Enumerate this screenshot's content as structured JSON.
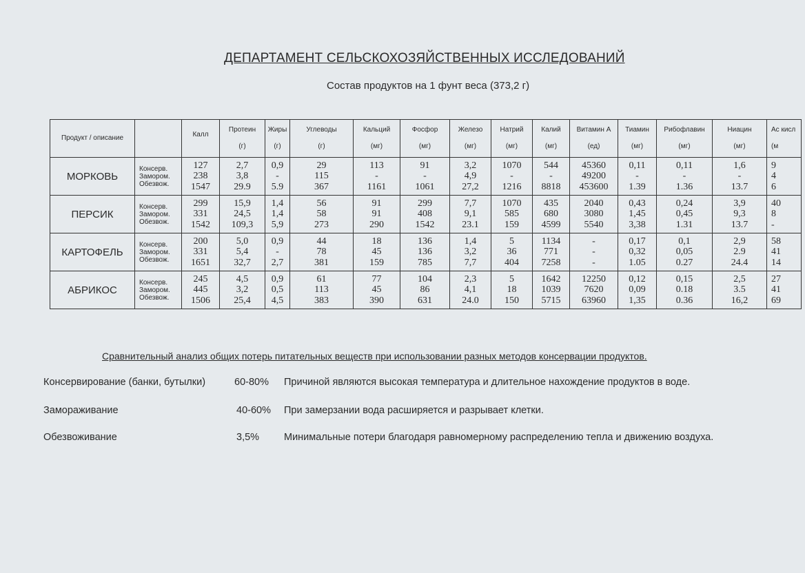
{
  "title": "ДЕПАРТАМЕНТ СЕЛЬСКОХОЗЯЙСТВЕННЫХ ИССЛЕДОВАНИЙ",
  "subtitle": "Состав продуктов на 1 фунт веса (373,2 г)",
  "table": {
    "product_header": "Продукт / описание",
    "columns": [
      {
        "name": "Калл",
        "unit": ""
      },
      {
        "name": "Протеин",
        "unit": "(г)"
      },
      {
        "name": "Жиры",
        "unit": "(г)"
      },
      {
        "name": "Углеводы",
        "unit": "(г)"
      },
      {
        "name": "Кальций",
        "unit": "(мг)"
      },
      {
        "name": "Фосфор",
        "unit": "(мг)"
      },
      {
        "name": "Железо",
        "unit": "(мг)"
      },
      {
        "name": "Натрий",
        "unit": "(мг)"
      },
      {
        "name": "Калий",
        "unit": "(мг)"
      },
      {
        "name": "Витамин A",
        "unit": "(ед)"
      },
      {
        "name": "Тиамин",
        "unit": "(мг)"
      },
      {
        "name": "Рибофлавин",
        "unit": "(мг)"
      },
      {
        "name": "Ниацин",
        "unit": "(мг)"
      },
      {
        "name": "Ас кисл",
        "unit": "(м"
      }
    ],
    "methods": [
      "Консерв.",
      "Замором.",
      "Обезвож."
    ],
    "rows": [
      {
        "product": "МОРКОВЬ",
        "values": [
          [
            "127",
            "238",
            "1547"
          ],
          [
            "2,7",
            "3,8",
            "29.9"
          ],
          [
            "0,9",
            "-",
            "5.9"
          ],
          [
            "29",
            "115",
            "367"
          ],
          [
            "113",
            "-",
            "1161"
          ],
          [
            "91",
            "-",
            "1061"
          ],
          [
            "3,2",
            "4,9",
            "27,2"
          ],
          [
            "1070",
            "-",
            "1216"
          ],
          [
            "544",
            "-",
            "8818"
          ],
          [
            "45360",
            "49200",
            "453600"
          ],
          [
            "0,11",
            "-",
            "1.39"
          ],
          [
            "0,11",
            "-",
            "1.36"
          ],
          [
            "1,6",
            "-",
            "13.7"
          ],
          [
            "9",
            "4",
            "6"
          ]
        ]
      },
      {
        "product": "ПЕРСИК",
        "values": [
          [
            "299",
            "331",
            "1542"
          ],
          [
            "15,9",
            "24,5",
            "109,3"
          ],
          [
            "1,4",
            "1,4",
            "5,9"
          ],
          [
            "56",
            "58",
            "273"
          ],
          [
            "91",
            "91",
            "290"
          ],
          [
            "299",
            "408",
            "1542"
          ],
          [
            "7,7",
            "9,1",
            "23.1"
          ],
          [
            "1070",
            "585",
            "159"
          ],
          [
            "435",
            "680",
            "4599"
          ],
          [
            "2040",
            "3080",
            "5540"
          ],
          [
            "0,43",
            "1,45",
            "3,38"
          ],
          [
            "0,24",
            "0,45",
            "1.31"
          ],
          [
            "3,9",
            "9,3",
            "13.7"
          ],
          [
            "40",
            "8",
            "-"
          ]
        ]
      },
      {
        "product": "КАРТОФЕЛЬ",
        "values": [
          [
            "200",
            "331",
            "1651"
          ],
          [
            "5,0",
            "5,4",
            "32,7"
          ],
          [
            "0,9",
            "-",
            "2,7"
          ],
          [
            "44",
            "78",
            "381"
          ],
          [
            "18",
            "45",
            "159"
          ],
          [
            "136",
            "136",
            "785"
          ],
          [
            "1,4",
            "3,2",
            "7,7"
          ],
          [
            "5",
            "36",
            "404"
          ],
          [
            "1134",
            "771",
            "7258"
          ],
          [
            "-",
            "-",
            "-"
          ],
          [
            "0,17",
            "0,32",
            "1.05"
          ],
          [
            "0,1",
            "0,05",
            "0.27"
          ],
          [
            "2,9",
            "2.9",
            "24.4"
          ],
          [
            "58",
            "41",
            "14"
          ]
        ]
      },
      {
        "product": "АБРИКОС",
        "values": [
          [
            "245",
            "445",
            "1506"
          ],
          [
            "4,5",
            "3,2",
            "25,4"
          ],
          [
            "0,9",
            "0,5",
            "4,5"
          ],
          [
            "61",
            "113",
            "383"
          ],
          [
            "77",
            "45",
            "390"
          ],
          [
            "104",
            "86",
            "631"
          ],
          [
            "2,3",
            "4,1",
            "24.0"
          ],
          [
            "5",
            "18",
            "150"
          ],
          [
            "1642",
            "1039",
            "5715"
          ],
          [
            "12250",
            "7620",
            "63960"
          ],
          [
            "0,12",
            "0,09",
            "1,35"
          ],
          [
            "0,15",
            "0.18",
            "0.36"
          ],
          [
            "2,5",
            "3.5",
            "16,2"
          ],
          [
            "27",
            "41",
            "69"
          ]
        ]
      }
    ]
  },
  "analysis": {
    "title": "Сравнительный анализ общих потерь питательных веществ при использовании разных методов консервации продуктов.",
    "items": [
      {
        "method": "Консервирование (банки, бутылки)",
        "loss": "60-80%",
        "reason": "Причиной являются высокая температура и длительное нахождение продуктов в воде."
      },
      {
        "method": "Замораживание",
        "loss": "40-60%",
        "reason": "При замерзании вода расширяется и разрывает клетки."
      },
      {
        "method": "Обезвоживание",
        "loss": "3,5%",
        "reason": "Минимальные потери благодаря равномерному распределению тепла и движению воздуха."
      }
    ]
  }
}
